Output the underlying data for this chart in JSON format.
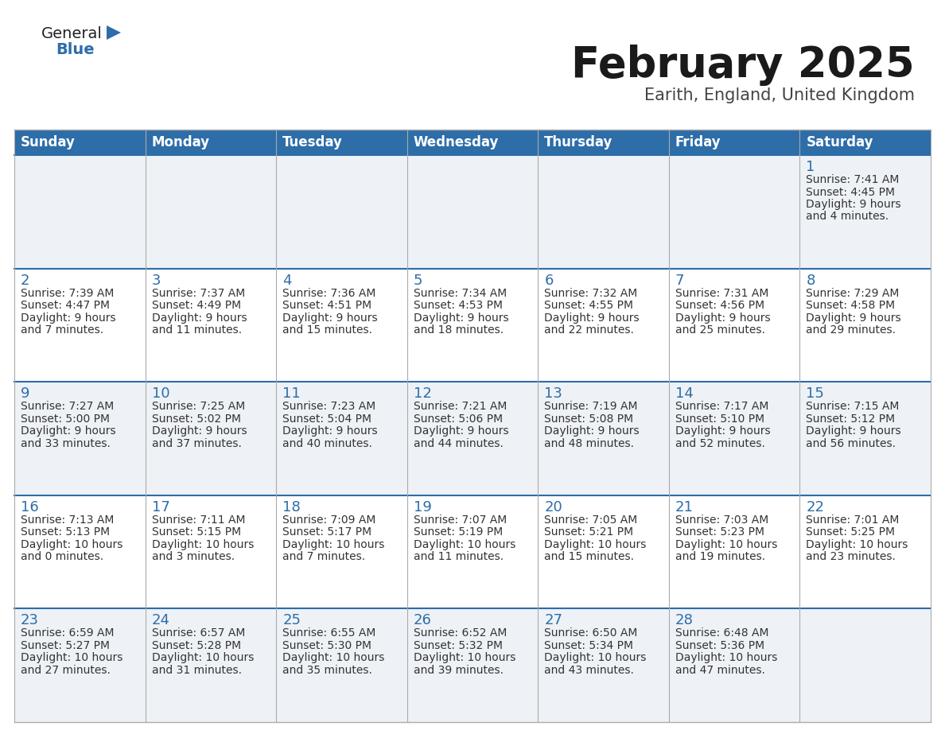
{
  "title": "February 2025",
  "subtitle": "Earith, England, United Kingdom",
  "days_of_week": [
    "Sunday",
    "Monday",
    "Tuesday",
    "Wednesday",
    "Thursday",
    "Friday",
    "Saturday"
  ],
  "header_bg": "#2D6DA8",
  "header_text": "#FFFFFF",
  "row_odd_bg": "#EEF2F7",
  "row_even_bg": "#FFFFFF",
  "border_color": "#2D6DA8",
  "outer_border_color": "#AAAAAA",
  "day_num_color": "#2D6DA8",
  "cell_text_color": "#333333",
  "title_color": "#1a1a1a",
  "subtitle_color": "#444444",
  "logo_general_color": "#222222",
  "logo_blue_color": "#2D6DA8",
  "weeks": [
    [
      null,
      null,
      null,
      null,
      null,
      null,
      {
        "day": 1,
        "sunrise": "7:41 AM",
        "sunset": "4:45 PM",
        "daylight": "9 hours and 4 minutes."
      }
    ],
    [
      {
        "day": 2,
        "sunrise": "7:39 AM",
        "sunset": "4:47 PM",
        "daylight": "9 hours and 7 minutes."
      },
      {
        "day": 3,
        "sunrise": "7:37 AM",
        "sunset": "4:49 PM",
        "daylight": "9 hours and 11 minutes."
      },
      {
        "day": 4,
        "sunrise": "7:36 AM",
        "sunset": "4:51 PM",
        "daylight": "9 hours and 15 minutes."
      },
      {
        "day": 5,
        "sunrise": "7:34 AM",
        "sunset": "4:53 PM",
        "daylight": "9 hours and 18 minutes."
      },
      {
        "day": 6,
        "sunrise": "7:32 AM",
        "sunset": "4:55 PM",
        "daylight": "9 hours and 22 minutes."
      },
      {
        "day": 7,
        "sunrise": "7:31 AM",
        "sunset": "4:56 PM",
        "daylight": "9 hours and 25 minutes."
      },
      {
        "day": 8,
        "sunrise": "7:29 AM",
        "sunset": "4:58 PM",
        "daylight": "9 hours and 29 minutes."
      }
    ],
    [
      {
        "day": 9,
        "sunrise": "7:27 AM",
        "sunset": "5:00 PM",
        "daylight": "9 hours and 33 minutes."
      },
      {
        "day": 10,
        "sunrise": "7:25 AM",
        "sunset": "5:02 PM",
        "daylight": "9 hours and 37 minutes."
      },
      {
        "day": 11,
        "sunrise": "7:23 AM",
        "sunset": "5:04 PM",
        "daylight": "9 hours and 40 minutes."
      },
      {
        "day": 12,
        "sunrise": "7:21 AM",
        "sunset": "5:06 PM",
        "daylight": "9 hours and 44 minutes."
      },
      {
        "day": 13,
        "sunrise": "7:19 AM",
        "sunset": "5:08 PM",
        "daylight": "9 hours and 48 minutes."
      },
      {
        "day": 14,
        "sunrise": "7:17 AM",
        "sunset": "5:10 PM",
        "daylight": "9 hours and 52 minutes."
      },
      {
        "day": 15,
        "sunrise": "7:15 AM",
        "sunset": "5:12 PM",
        "daylight": "9 hours and 56 minutes."
      }
    ],
    [
      {
        "day": 16,
        "sunrise": "7:13 AM",
        "sunset": "5:13 PM",
        "daylight": "10 hours and 0 minutes."
      },
      {
        "day": 17,
        "sunrise": "7:11 AM",
        "sunset": "5:15 PM",
        "daylight": "10 hours and 3 minutes."
      },
      {
        "day": 18,
        "sunrise": "7:09 AM",
        "sunset": "5:17 PM",
        "daylight": "10 hours and 7 minutes."
      },
      {
        "day": 19,
        "sunrise": "7:07 AM",
        "sunset": "5:19 PM",
        "daylight": "10 hours and 11 minutes."
      },
      {
        "day": 20,
        "sunrise": "7:05 AM",
        "sunset": "5:21 PM",
        "daylight": "10 hours and 15 minutes."
      },
      {
        "day": 21,
        "sunrise": "7:03 AM",
        "sunset": "5:23 PM",
        "daylight": "10 hours and 19 minutes."
      },
      {
        "day": 22,
        "sunrise": "7:01 AM",
        "sunset": "5:25 PM",
        "daylight": "10 hours and 23 minutes."
      }
    ],
    [
      {
        "day": 23,
        "sunrise": "6:59 AM",
        "sunset": "5:27 PM",
        "daylight": "10 hours and 27 minutes."
      },
      {
        "day": 24,
        "sunrise": "6:57 AM",
        "sunset": "5:28 PM",
        "daylight": "10 hours and 31 minutes."
      },
      {
        "day": 25,
        "sunrise": "6:55 AM",
        "sunset": "5:30 PM",
        "daylight": "10 hours and 35 minutes."
      },
      {
        "day": 26,
        "sunrise": "6:52 AM",
        "sunset": "5:32 PM",
        "daylight": "10 hours and 39 minutes."
      },
      {
        "day": 27,
        "sunrise": "6:50 AM",
        "sunset": "5:34 PM",
        "daylight": "10 hours and 43 minutes."
      },
      {
        "day": 28,
        "sunrise": "6:48 AM",
        "sunset": "5:36 PM",
        "daylight": "10 hours and 47 minutes."
      },
      null
    ]
  ]
}
